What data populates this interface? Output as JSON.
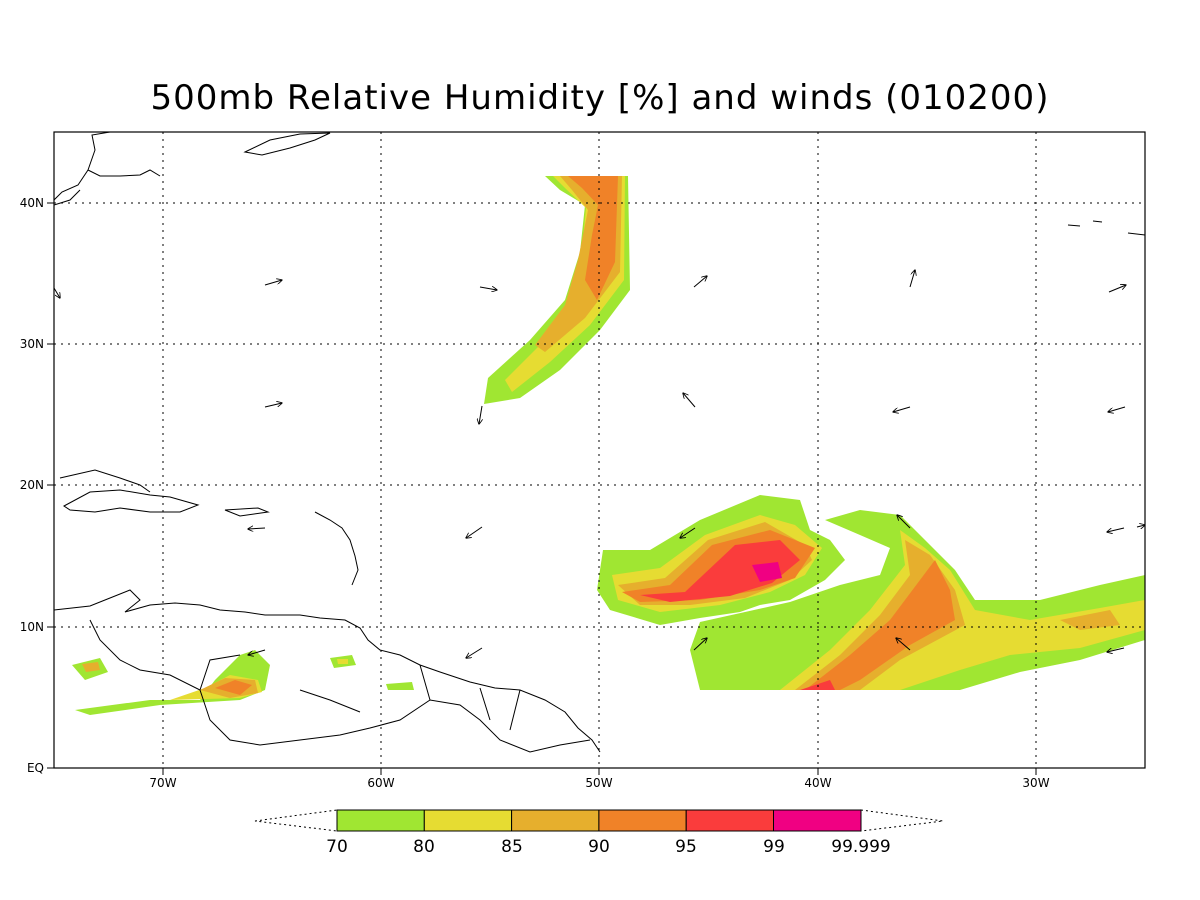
{
  "title": "500mb Relative Humidity [%] and winds (010200)",
  "axes": {
    "lon_labels": [
      "70W",
      "60W",
      "50W",
      "40W",
      "30W"
    ],
    "lat_labels": [
      "EQ",
      "10N",
      "20N",
      "30N",
      "40N"
    ],
    "lon_range": [
      -75,
      -25
    ],
    "lat_range": [
      0,
      45
    ],
    "grid": "dotted"
  },
  "colorbar": {
    "labels": [
      "70",
      "80",
      "85",
      "90",
      "95",
      "99",
      "99.999"
    ],
    "colors": [
      "#a0e632",
      "#e6dc32",
      "#e6af2d",
      "#f08228",
      "#fa3c3c",
      "#f00082"
    ]
  },
  "colors": {
    "coast": "#000000",
    "grid": "#000000"
  }
}
